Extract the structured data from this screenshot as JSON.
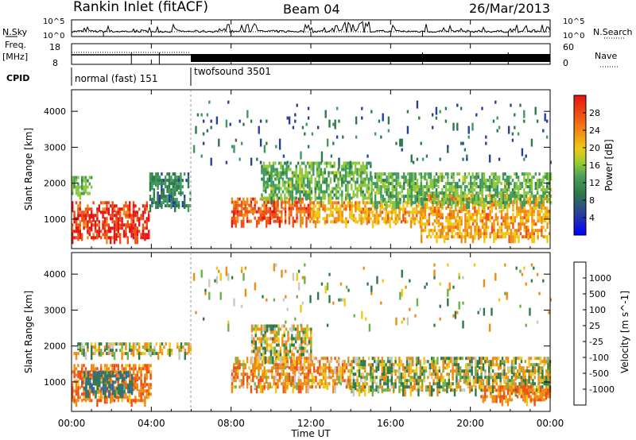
{
  "header": {
    "station": "Rankin Inlet (fitACF)",
    "beam": "Beam 04",
    "date": "26/Mar/2013"
  },
  "top_panels": {
    "nsky_label": "N.Sky",
    "nsky_tick_top": "10^5",
    "nsky_tick_bottom": "10^0",
    "nsearch_label": "N.Search",
    "nsearch_tick_top": "10^5",
    "nsearch_tick_bottom": "10^0",
    "freq_label": "Freq.",
    "freq_unit": "[MHz]",
    "freq_tick_top": "18",
    "freq_tick_bottom": "8",
    "nave_label": "Nave",
    "nave_tick_top": "60",
    "nave_tick_bottom": "0",
    "cpid_label": "CPID",
    "cpid_modes": [
      {
        "name": "normal (fast) 151",
        "start_hour": 0,
        "end_hour": 6
      },
      {
        "name": "twofsound 3501",
        "start_hour": 6,
        "end_hour": 24
      }
    ]
  },
  "colors": {
    "power": [
      "#0000ff",
      "#2a3e9e",
      "#2e7a4a",
      "#3f9a5e",
      "#8cc83c",
      "#f0c814",
      "#f08c14",
      "#f05014",
      "#e61414"
    ],
    "velocity": [
      "#1e3c9e",
      "#2e6aa0",
      "#2e7a4a",
      "#6ab44a",
      "#c8c8c8",
      "#f0c814",
      "#f08c14",
      "#f05014",
      "#e61414"
    ],
    "ground_scatter": "#c8c8c8"
  },
  "chart_data": [
    {
      "type": "heatmap",
      "panel": "power",
      "ylabel": "Slant Range [km]",
      "xlim": [
        0,
        24
      ],
      "ylim": [
        180,
        4600
      ],
      "yticks": [
        "1000",
        "2000",
        "3000",
        "4000"
      ],
      "colorbar_label": "Power [dB]",
      "colorbar_ticks": [
        "4",
        "8",
        "12",
        "16",
        "20",
        "24",
        "28"
      ],
      "scatter_bands": [
        {
          "t0": 0.0,
          "t1": 3.9,
          "r0": 500,
          "r1": 1500,
          "level": 28
        },
        {
          "t0": 0.0,
          "t1": 1.0,
          "r0": 1700,
          "r1": 2200,
          "level": 14
        },
        {
          "t0": 3.9,
          "t1": 6.0,
          "r0": 1400,
          "r1": 2300,
          "level": 10
        },
        {
          "t0": 8.0,
          "t1": 12.0,
          "r0": 900,
          "r1": 1600,
          "level": 26
        },
        {
          "t0": 12.0,
          "t1": 17.5,
          "r0": 900,
          "r1": 1500,
          "level": 22
        },
        {
          "t0": 17.5,
          "t1": 24.0,
          "r0": 500,
          "r1": 1700,
          "level": 22
        },
        {
          "t0": 9.5,
          "t1": 15.0,
          "r0": 1600,
          "r1": 2600,
          "level": 14
        },
        {
          "t0": 15.0,
          "t1": 24.0,
          "r0": 1500,
          "r1": 2300,
          "level": 14
        },
        {
          "t0": 6.0,
          "t1": 24.0,
          "r0": 2600,
          "r1": 4300,
          "level": 8
        }
      ]
    },
    {
      "type": "heatmap",
      "panel": "velocity",
      "ylabel": "Slant Range [km]",
      "xlabel": "Time UT",
      "xlim": [
        0,
        24
      ],
      "ylim": [
        180,
        4600
      ],
      "xticks": [
        "00:00",
        "04:00",
        "08:00",
        "12:00",
        "16:00",
        "20:00",
        "00:00"
      ],
      "yticks": [
        "1000",
        "2000",
        "3000",
        "4000"
      ],
      "colorbar_label": "Velocity [m s^-1]",
      "colorbar_ticks": [
        "1000",
        "500",
        "100",
        "25",
        "-25",
        "-100",
        "-500",
        "-1000"
      ],
      "scatter_bands": [
        {
          "t0": 0.0,
          "t1": 4.0,
          "r0": 500,
          "r1": 1500,
          "value": -300
        },
        {
          "t0": 0.5,
          "t1": 3.0,
          "r0": 700,
          "r1": 1300,
          "value": 300
        },
        {
          "t0": 0.0,
          "t1": 6.0,
          "r0": 1800,
          "r1": 2100,
          "value": 0
        },
        {
          "t0": 8.0,
          "t1": 14.0,
          "r0": 900,
          "r1": 1700,
          "value": -200
        },
        {
          "t0": 9.0,
          "t1": 12.0,
          "r0": 1700,
          "r1": 2600,
          "value": 0
        },
        {
          "t0": 14.0,
          "t1": 24.0,
          "r0": 800,
          "r1": 1700,
          "value": 0
        },
        {
          "t0": 20.5,
          "t1": 24.0,
          "r0": 500,
          "r1": 900,
          "value": -300
        },
        {
          "t0": 6.0,
          "t1": 24.0,
          "r0": 2600,
          "r1": 4300,
          "value": 0
        }
      ]
    }
  ]
}
